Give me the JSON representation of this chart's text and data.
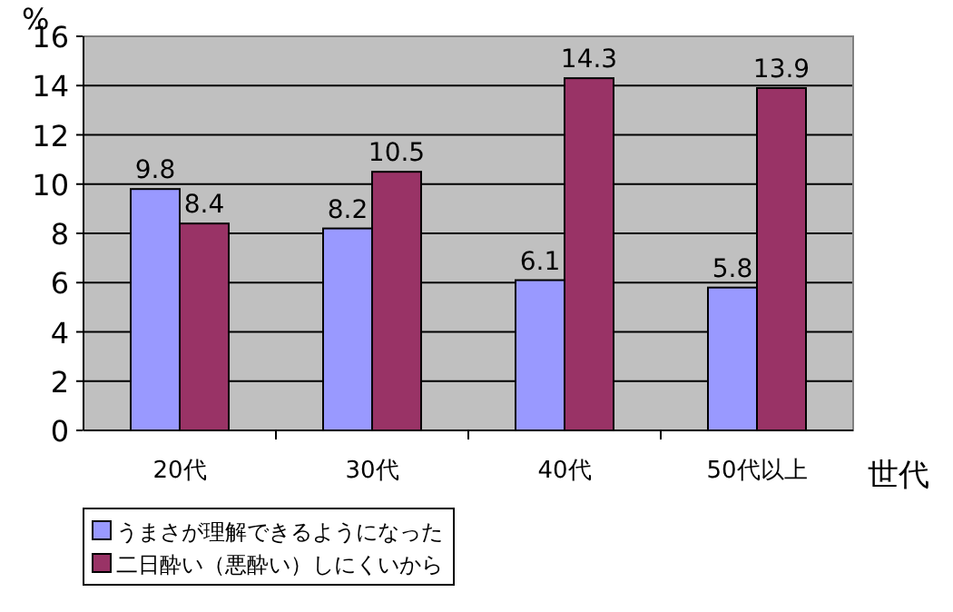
{
  "chart_data": {
    "type": "bar",
    "ylabel": "%",
    "xlabel": "世代",
    "categories": [
      "20代",
      "30代",
      "40代",
      "50代以上"
    ],
    "series": [
      {
        "name": "うまさが理解できるようになった",
        "color": "#9999ff",
        "values": [
          9.8,
          8.2,
          6.1,
          5.8
        ]
      },
      {
        "name": "二日酔い（悪酔い）しにくいから",
        "color": "#993366",
        "values": [
          8.4,
          10.5,
          14.3,
          13.9
        ]
      }
    ],
    "ylim": [
      0,
      16
    ],
    "yticks": [
      0,
      2,
      4,
      6,
      8,
      10,
      12,
      14,
      16
    ],
    "grid": "y",
    "legend": "bottom",
    "data_labels": true
  }
}
